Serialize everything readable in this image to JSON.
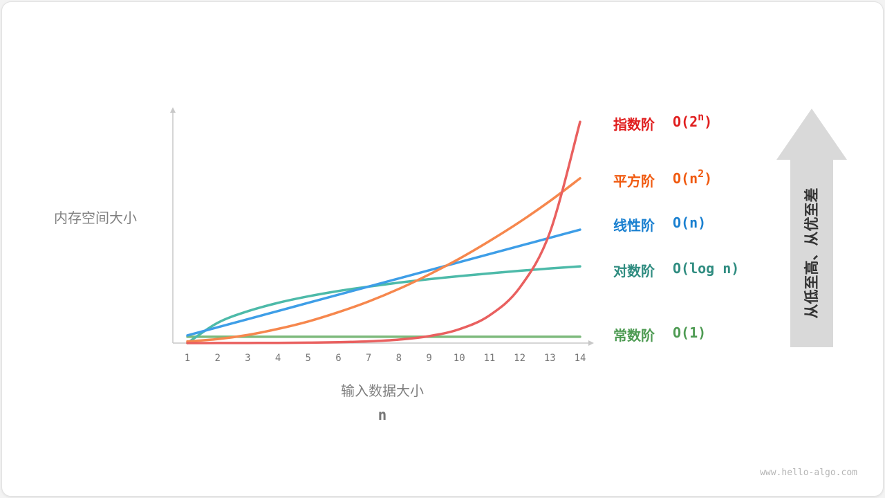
{
  "chart_data": {
    "type": "line",
    "xlabel": "输入数据大小",
    "xvar": "n",
    "ylabel": "内存空间大小",
    "x": [
      1,
      2,
      3,
      4,
      5,
      6,
      7,
      8,
      9,
      10,
      11,
      12,
      13,
      14
    ],
    "xlim": [
      1,
      14
    ],
    "ylim": [
      0,
      100
    ],
    "grid": false,
    "series": [
      {
        "name": "常数阶",
        "formula": "O(1)",
        "line_color": "#7cb97b",
        "text_color": "#4e9b53",
        "values": [
          2.7,
          2.7,
          2.7,
          2.7,
          2.7,
          2.7,
          2.7,
          2.7,
          2.7,
          2.7,
          2.7,
          2.7,
          2.7,
          2.7
        ]
      },
      {
        "name": "对数阶",
        "formula": "O(log n)",
        "line_color": "#4dbaa9",
        "text_color": "#2f8c80",
        "values": [
          0,
          8.7,
          13.7,
          17.3,
          20.1,
          22.4,
          24.3,
          26.0,
          27.5,
          28.8,
          30.0,
          31.1,
          32.1,
          33.0
        ]
      },
      {
        "name": "线性阶",
        "formula": "O(n)",
        "line_color": "#3e9ee7",
        "text_color": "#1a80d0",
        "values": [
          3.3,
          6.8,
          10.3,
          13.8,
          17.3,
          20.8,
          24.3,
          27.8,
          31.3,
          34.8,
          38.3,
          41.8,
          45.3,
          48.8
        ]
      },
      {
        "name": "平方阶",
        "formula": "O(n",
        "sup": "2",
        "formula_end": ")",
        "line_color": "#f6874d",
        "text_color": "#f05a10",
        "values": [
          0.7,
          1.7,
          3.5,
          6.1,
          9.3,
          13.3,
          17.9,
          23.3,
          29.5,
          36.3,
          43.9,
          52.1,
          61.1,
          70.9
        ]
      },
      {
        "name": "指数阶",
        "formula": "O(2",
        "sup": "n",
        "formula_end": ")",
        "line_color": "#e9605f",
        "text_color": "#e01e1e",
        "values": [
          0.01,
          0.02,
          0.05,
          0.09,
          0.19,
          0.37,
          0.74,
          1.49,
          2.98,
          5.95,
          11.9,
          23.8,
          47.6,
          95.2
        ]
      }
    ]
  },
  "arrow": {
    "text": "从低至高、从优至差",
    "color": "#d9d9d9"
  },
  "watermark": "www.hello-algo.com"
}
